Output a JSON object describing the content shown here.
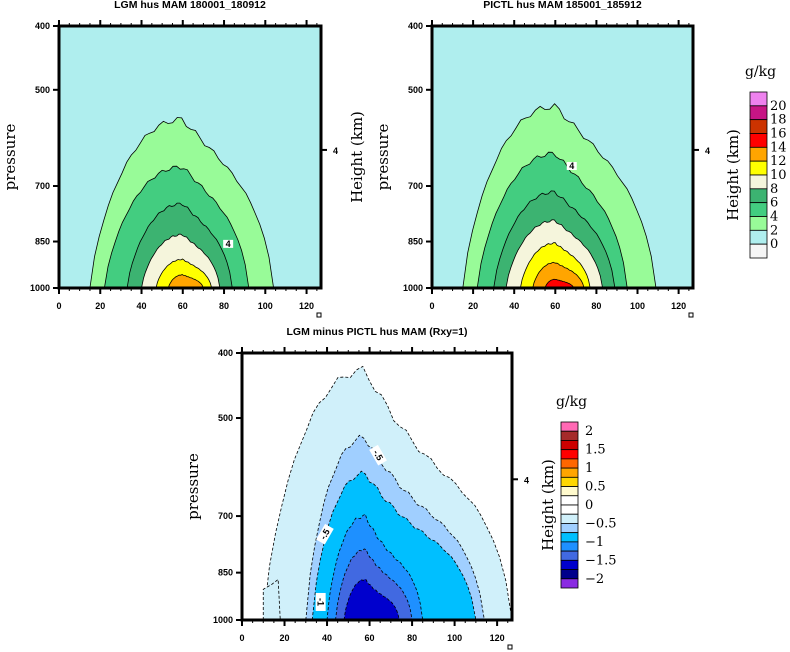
{
  "chart_data": [
    {
      "type": "heatmap",
      "subtype": "filled-contour",
      "title": "LGM hus MAM 180001_180912",
      "xlabel": "",
      "ylabel": "pressure",
      "right_ylabel": "Height (km)",
      "right_yticks": [
        "4"
      ],
      "xlim": [
        0,
        127
      ],
      "ylim": [
        1000,
        400
      ],
      "yscale": "log",
      "xticks": [
        "0",
        "20",
        "40",
        "60",
        "80",
        "100",
        "120"
      ],
      "yticks": [
        "400",
        "500",
        "700",
        "850",
        "1000"
      ],
      "contour_levels": [
        0,
        2,
        4,
        6,
        8,
        10,
        12,
        14,
        16,
        18,
        20
      ],
      "contour_label": "4",
      "peak_x": 60,
      "max_level_reached": 12,
      "contour_tops": [
        {
          "level": 2,
          "x_range": [
            15,
            104
          ],
          "top_pressure": 555
        },
        {
          "level": 4,
          "x_range": [
            22,
            92
          ],
          "top_pressure": 655
        },
        {
          "level": 6,
          "x_range": [
            33,
            84
          ],
          "top_pressure": 745
        },
        {
          "level": 8,
          "x_range": [
            40,
            78
          ],
          "top_pressure": 830
        },
        {
          "level": 10,
          "x_range": [
            47,
            74
          ],
          "top_pressure": 905
        },
        {
          "level": 12,
          "x_range": [
            53,
            70
          ],
          "top_pressure": 955
        }
      ]
    },
    {
      "type": "heatmap",
      "subtype": "filled-contour",
      "title": "PICTL hus MAM 185001_185912",
      "xlabel": "",
      "ylabel": "pressure",
      "left_outer_label": "Height (km)",
      "right_ylabel": "Height (km)",
      "right_yticks": [
        "4"
      ],
      "xlim": [
        0,
        127
      ],
      "ylim": [
        1000,
        400
      ],
      "yscale": "log",
      "xticks": [
        "0",
        "20",
        "40",
        "60",
        "80",
        "100",
        "120"
      ],
      "yticks": [
        "400",
        "500",
        "700",
        "850",
        "1000"
      ],
      "contour_levels": [
        0,
        2,
        4,
        6,
        8,
        10,
        12,
        14,
        16,
        18,
        20
      ],
      "contour_label": "4",
      "peak_x": 60,
      "max_level_reached": 14,
      "contour_tops": [
        {
          "level": 2,
          "x_range": [
            15,
            109
          ],
          "top_pressure": 530
        },
        {
          "level": 4,
          "x_range": [
            22,
            95
          ],
          "top_pressure": 625
        },
        {
          "level": 6,
          "x_range": [
            30,
            89
          ],
          "top_pressure": 715
        },
        {
          "level": 8,
          "x_range": [
            36,
            83
          ],
          "top_pressure": 790
        },
        {
          "level": 10,
          "x_range": [
            43,
            77
          ],
          "top_pressure": 855
        },
        {
          "level": 12,
          "x_range": [
            49,
            74
          ],
          "top_pressure": 915
        },
        {
          "level": 14,
          "x_range": [
            55,
            69
          ],
          "top_pressure": 970
        }
      ]
    },
    {
      "type": "heatmap",
      "subtype": "filled-contour",
      "title": "LGM minus PICTL hus MAM (Rxy=1)",
      "xlabel": "",
      "ylabel": "pressure",
      "right_ylabel": "Height (km)",
      "right_yticks": [
        "4"
      ],
      "xlim": [
        0,
        127
      ],
      "ylim": [
        1000,
        400
      ],
      "yscale": "log",
      "xticks": [
        "0",
        "20",
        "40",
        "60",
        "80",
        "100",
        "120"
      ],
      "yticks": [
        "400",
        "500",
        "700",
        "850",
        "1000"
      ],
      "contour_levels": [
        -2,
        -1.75,
        -1.5,
        -1.25,
        -1,
        -0.75,
        -0.5,
        -0.25,
        0,
        0.25,
        0.5,
        0.75,
        1,
        1.25,
        1.5,
        1.75,
        2
      ],
      "contour_labels": [
        "-.5",
        "-.5",
        "-1"
      ],
      "dashed_negative_contours": true,
      "min_level_reached": -1.5,
      "contour_tops": [
        {
          "level": -0.25,
          "x_range": [
            10,
            127
          ],
          "top_pressure": 425
        },
        {
          "level": -0.5,
          "x_range": [
            30,
            114
          ],
          "top_pressure": 535
        },
        {
          "level": -0.75,
          "x_range": [
            33,
            110
          ],
          "top_pressure": 605
        },
        {
          "level": -1,
          "x_range": [
            40,
            85
          ],
          "top_pressure": 700
        },
        {
          "level": -1.25,
          "x_range": [
            44,
            80
          ],
          "top_pressure": 785
        },
        {
          "level": -1.5,
          "x_range": [
            48,
            74
          ],
          "top_pressure": 870
        }
      ]
    }
  ],
  "colorbars": [
    {
      "unit": "g/kg",
      "side_label": "Height (km)",
      "labels": [
        "20",
        "18",
        "16",
        "14",
        "12",
        "10",
        "8",
        "6",
        "4",
        "2",
        "0"
      ],
      "colors": [
        "#ee82ee",
        "#c71585",
        "#cc3300",
        "#ff0000",
        "#ffa500",
        "#ffff00",
        "#f5f5dc",
        "#3cb371",
        "#43cd80",
        "#98fb98",
        "#afeeee",
        "#f5f5f5"
      ]
    },
    {
      "unit": "g/kg",
      "side_label": "Height (km)",
      "labels": [
        "2",
        "1.5",
        "1",
        "0.5",
        "0",
        "−0.5",
        "−1",
        "−1.5",
        "−2"
      ],
      "colors": [
        "#ff69b4",
        "#a52a2a",
        "#cd0000",
        "#ff0000",
        "#ff6600",
        "#ffa500",
        "#ffd700",
        "#fffacd",
        "#ffffff",
        "#ffffff",
        "#d0f0fa",
        "#a0cfff",
        "#00bfff",
        "#1e90ff",
        "#4169e1",
        "#0000cd",
        "#00008b",
        "#8a2be2"
      ]
    }
  ],
  "level_colors": {
    "abs": {
      "0": "#afeeee",
      "2": "#98fb98",
      "4": "#43cd80",
      "6": "#3cb371",
      "8": "#f5f5dc",
      "10": "#ffff00",
      "12": "#ffa500",
      "14": "#ff0000"
    },
    "diff": {
      "-0.25": "#d0f0fa",
      "-0.5": "#a0cfff",
      "-0.75": "#00bfff",
      "-1": "#1e90ff",
      "-1.25": "#4169e1",
      "-1.5": "#0000cd"
    }
  }
}
